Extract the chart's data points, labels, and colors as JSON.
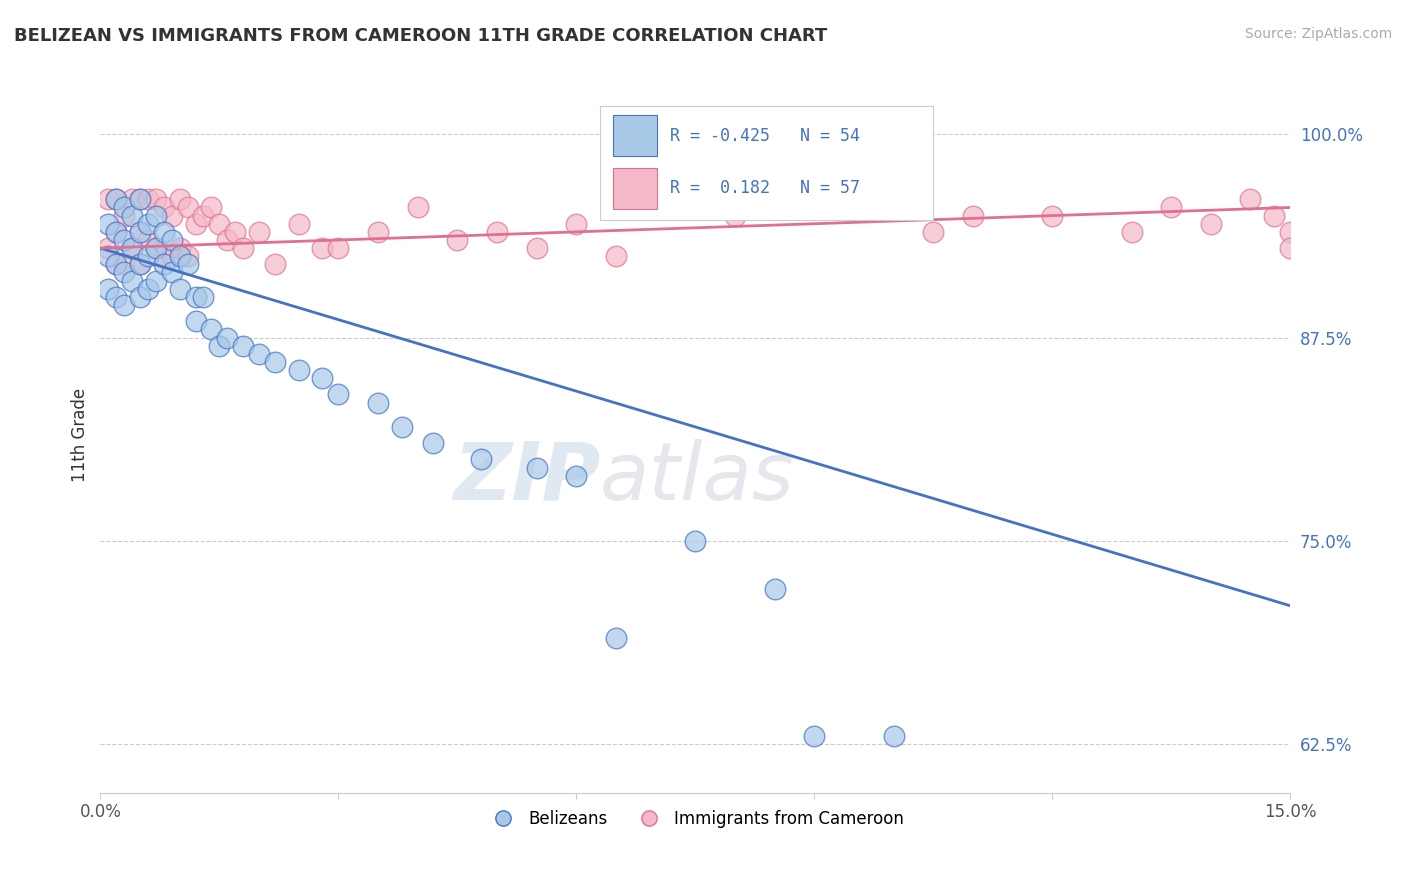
{
  "title": "BELIZEAN VS IMMIGRANTS FROM CAMEROON 11TH GRADE CORRELATION CHART",
  "source": "Source: ZipAtlas.com",
  "ylabel": "11th Grade",
  "xlim": [
    0.0,
    0.15
  ],
  "ylim": [
    0.595,
    1.035
  ],
  "yticks": [
    0.625,
    0.75,
    0.875,
    1.0
  ],
  "ytick_labels": [
    "62.5%",
    "75.0%",
    "87.5%",
    "100.0%"
  ],
  "blue_color": "#a8c8e8",
  "pink_color": "#f4b8c8",
  "blue_line_color": "#4472c4",
  "pink_line_color": "#e07090",
  "blue_R": -0.425,
  "blue_N": 54,
  "pink_R": 0.182,
  "pink_N": 57,
  "watermark_zip": "ZIP",
  "watermark_atlas": "atlas",
  "legend_blue_label": "Belizeans",
  "legend_pink_label": "Immigrants from Cameroon",
  "blue_scatter_x": [
    0.001,
    0.001,
    0.001,
    0.002,
    0.002,
    0.002,
    0.002,
    0.003,
    0.003,
    0.003,
    0.003,
    0.004,
    0.004,
    0.004,
    0.005,
    0.005,
    0.005,
    0.005,
    0.006,
    0.006,
    0.006,
    0.007,
    0.007,
    0.007,
    0.008,
    0.008,
    0.009,
    0.009,
    0.01,
    0.01,
    0.011,
    0.012,
    0.012,
    0.013,
    0.014,
    0.015,
    0.016,
    0.018,
    0.02,
    0.022,
    0.025,
    0.028,
    0.03,
    0.035,
    0.038,
    0.042,
    0.048,
    0.055,
    0.06,
    0.065,
    0.075,
    0.085,
    0.09,
    0.1
  ],
  "blue_scatter_y": [
    0.945,
    0.925,
    0.905,
    0.96,
    0.94,
    0.92,
    0.9,
    0.955,
    0.935,
    0.915,
    0.895,
    0.95,
    0.93,
    0.91,
    0.96,
    0.94,
    0.92,
    0.9,
    0.945,
    0.925,
    0.905,
    0.95,
    0.93,
    0.91,
    0.94,
    0.92,
    0.935,
    0.915,
    0.925,
    0.905,
    0.92,
    0.9,
    0.885,
    0.9,
    0.88,
    0.87,
    0.875,
    0.87,
    0.865,
    0.86,
    0.855,
    0.85,
    0.84,
    0.835,
    0.82,
    0.81,
    0.8,
    0.795,
    0.79,
    0.69,
    0.75,
    0.72,
    0.63,
    0.63
  ],
  "pink_scatter_x": [
    0.001,
    0.001,
    0.002,
    0.002,
    0.002,
    0.003,
    0.003,
    0.004,
    0.004,
    0.005,
    0.005,
    0.005,
    0.006,
    0.006,
    0.007,
    0.007,
    0.008,
    0.008,
    0.009,
    0.009,
    0.01,
    0.01,
    0.011,
    0.011,
    0.012,
    0.013,
    0.014,
    0.015,
    0.016,
    0.017,
    0.018,
    0.02,
    0.022,
    0.025,
    0.028,
    0.03,
    0.035,
    0.04,
    0.045,
    0.05,
    0.055,
    0.06,
    0.065,
    0.07,
    0.08,
    0.09,
    0.1,
    0.105,
    0.11,
    0.12,
    0.13,
    0.135,
    0.14,
    0.145,
    0.148,
    0.15,
    0.15
  ],
  "pink_scatter_y": [
    0.96,
    0.93,
    0.96,
    0.94,
    0.92,
    0.95,
    0.92,
    0.96,
    0.93,
    0.96,
    0.94,
    0.92,
    0.96,
    0.935,
    0.96,
    0.93,
    0.955,
    0.925,
    0.95,
    0.925,
    0.96,
    0.93,
    0.955,
    0.925,
    0.945,
    0.95,
    0.955,
    0.945,
    0.935,
    0.94,
    0.93,
    0.94,
    0.92,
    0.945,
    0.93,
    0.93,
    0.94,
    0.955,
    0.935,
    0.94,
    0.93,
    0.945,
    0.925,
    0.96,
    0.95,
    0.955,
    0.96,
    0.94,
    0.95,
    0.95,
    0.94,
    0.955,
    0.945,
    0.96,
    0.95,
    0.94,
    0.93
  ],
  "blue_line_x0": 0.0,
  "blue_line_x1": 0.15,
  "blue_line_y0": 0.93,
  "blue_line_y1": 0.71,
  "pink_line_x0": 0.0,
  "pink_line_x1": 0.15,
  "pink_line_y0": 0.93,
  "pink_line_y1": 0.955
}
